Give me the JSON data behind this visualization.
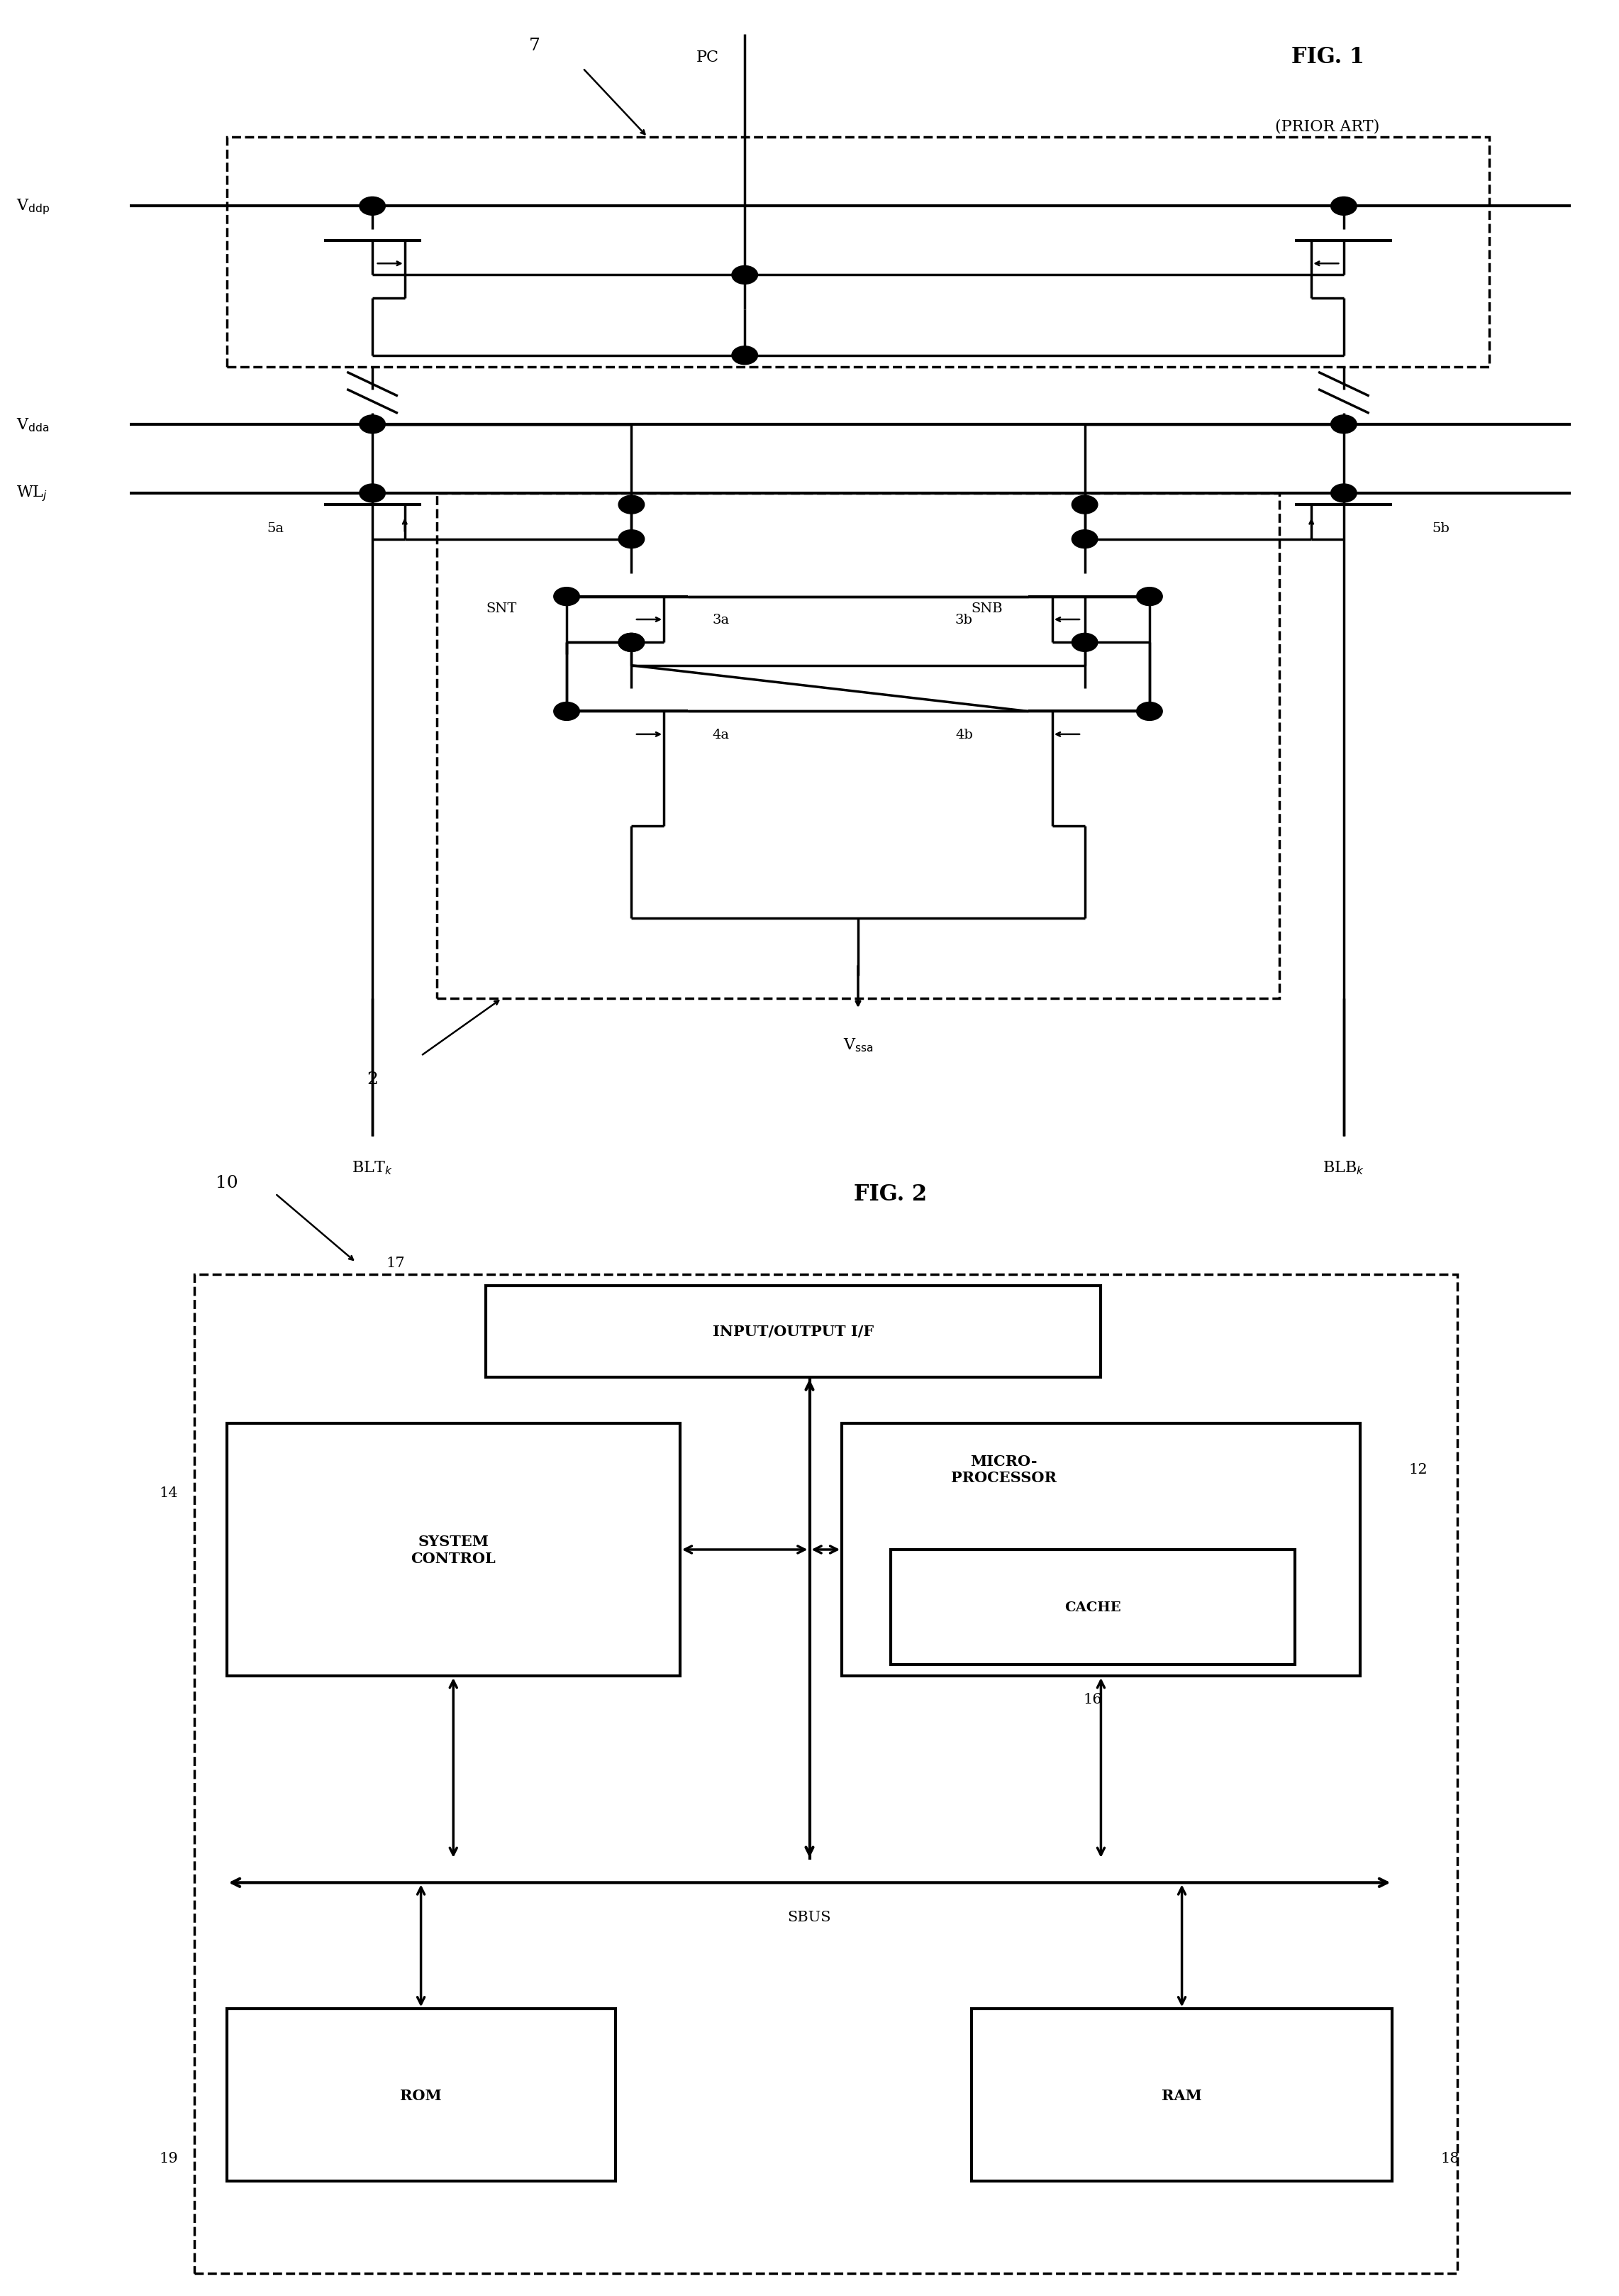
{
  "bg_color": "#ffffff",
  "fig1_title": "FIG. 1",
  "fig1_subtitle": "(PRIOR ART)",
  "fig2_title": "FIG. 2",
  "lw": 2.5,
  "lw_thick": 3.0
}
